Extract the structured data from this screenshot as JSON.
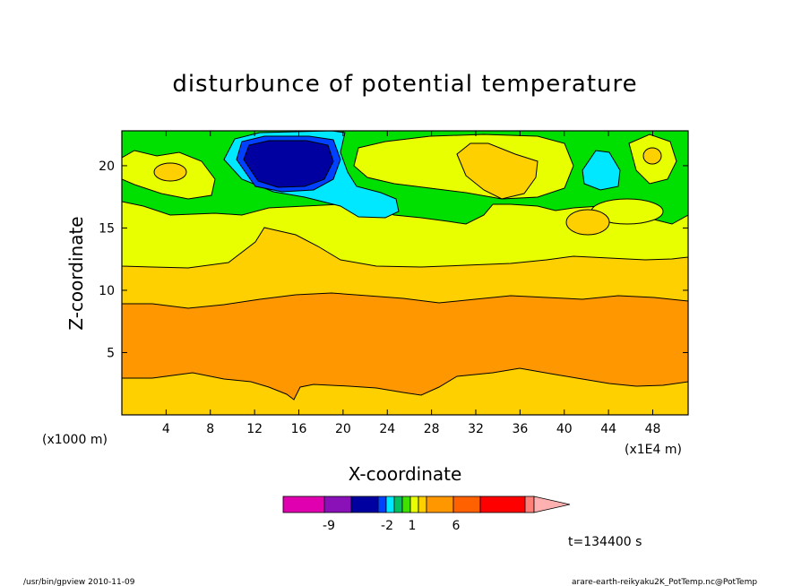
{
  "chart_data": {
    "type": "heatmap",
    "subtype": "filled-contour",
    "title": "disturbunce of potential temperature",
    "xlabel": "X-coordinate",
    "ylabel": "Z-coordinate",
    "x_unit": "(x1E4 m)",
    "y_unit": "(x1000 m)",
    "xlim": [
      0,
      51.2
    ],
    "ylim": [
      0,
      22.8
    ],
    "x_ticks": [
      4,
      8,
      12,
      16,
      20,
      24,
      28,
      32,
      36,
      40,
      44,
      48
    ],
    "y_ticks": [
      5,
      10,
      15,
      20
    ],
    "x_tick_labels": [
      "4",
      "8",
      "12",
      "16",
      "20",
      "24",
      "28",
      "32",
      "36",
      "40",
      "44",
      "48"
    ],
    "y_tick_labels": [
      "5",
      "10",
      "15",
      "20"
    ],
    "legend": {
      "type": "colorbar",
      "placement": "bottom",
      "labels": [
        "-9",
        "-2",
        "1",
        "6"
      ],
      "segments": [
        {
          "color": "#e000b0"
        },
        {
          "color": "#8a10b8"
        },
        {
          "color": "#0000a0"
        },
        {
          "color": "#0040ff"
        },
        {
          "color": "#00e8ff"
        },
        {
          "color": "#00c060"
        },
        {
          "color": "#40e000"
        },
        {
          "color": "#e8ff00"
        },
        {
          "color": "#ffd000"
        },
        {
          "color": "#ff9800"
        },
        {
          "color": "#ff6000"
        },
        {
          "color": "#ff0000"
        },
        {
          "color": "#ff8078"
        },
        {
          "color": "#ffb0b0"
        }
      ]
    },
    "regions": [
      {
        "level": "6",
        "color": "#ff9800",
        "z_range": [
          3,
          9
        ],
        "description": "orange band"
      },
      {
        "level": "1",
        "color": "#ffd000",
        "z_range": [
          0,
          12
        ],
        "description": "gold"
      },
      {
        "level": "0",
        "color": "#e8ff00",
        "z_range": [
          12,
          17
        ],
        "description": "yellow"
      },
      {
        "level": "-1",
        "color": "#00e000",
        "z_range": [
          17,
          22.8
        ],
        "description": "green"
      },
      {
        "level": "-2",
        "color": "#00e8ff",
        "center": [
          15,
          20.3
        ],
        "description": "cyan cells"
      },
      {
        "level": "-9",
        "color": "#0000a0",
        "center": [
          15,
          20.3
        ],
        "description": "cold core"
      }
    ]
  },
  "footer": {
    "time_label": "t=134400 s",
    "left": "/usr/bin/gpview   2010-11-09",
    "right": "arare-earth-reikyaku2K_PotTemp.nc@PotTemp"
  },
  "colors": {
    "orange": "#ff9800",
    "gold": "#ffd000",
    "yellow": "#e8ff00",
    "green": "#00e000",
    "cyan": "#00e8ff",
    "blue": "#0040ff",
    "darkblue": "#0000a0"
  }
}
